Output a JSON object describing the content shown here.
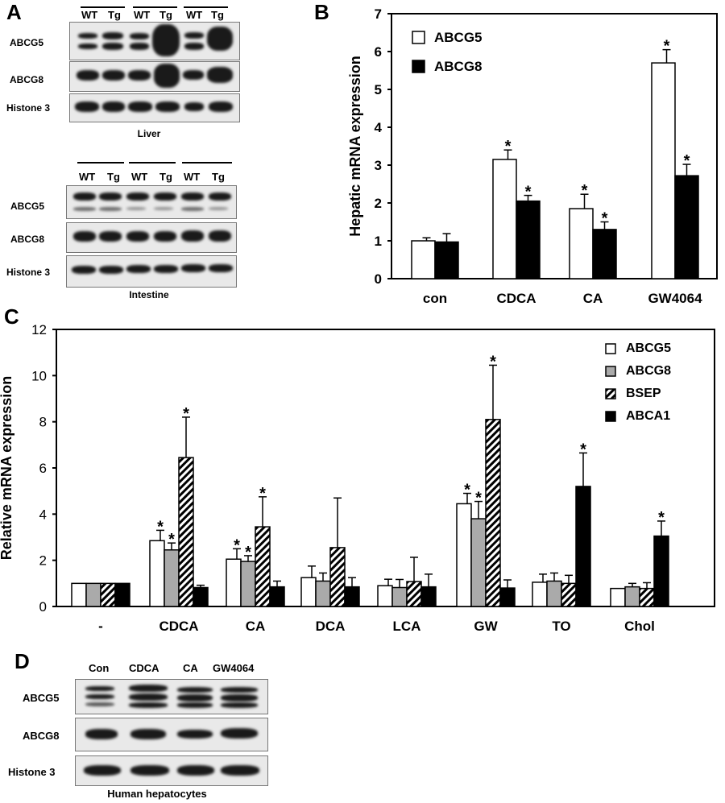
{
  "panels": {
    "A": {
      "letter": "A",
      "liver": {
        "lane_labels": [
          "WT",
          "Tg",
          "WT",
          "Tg",
          "WT",
          "Tg"
        ],
        "rows": [
          "ABCG5",
          "ABCG8",
          "Histone 3"
        ],
        "caption": "Liver"
      },
      "intestine": {
        "lane_labels": [
          "WT",
          "Tg",
          "WT",
          "Tg",
          "WT",
          "Tg"
        ],
        "rows": [
          "ABCG5",
          "ABCG8",
          "Histone 3"
        ],
        "caption": "Intestine"
      }
    },
    "B": {
      "letter": "B"
    },
    "C": {
      "letter": "C"
    },
    "D": {
      "letter": "D",
      "lane_labels": [
        "Con",
        "CDCA",
        "CA",
        "GW4064"
      ],
      "rows": [
        "ABCG5",
        "ABCG8",
        "Histone 3"
      ],
      "caption": "Human hepatocytes"
    }
  },
  "chart_data": [
    {
      "panel": "B",
      "type": "bar",
      "ylabel": "Hepatic mRNA expression",
      "ylim": [
        0,
        7
      ],
      "yticks": [
        "0",
        "1",
        "2",
        "3",
        "4",
        "5",
        "6",
        "7"
      ],
      "categories": [
        "con",
        "CDCA",
        "CA",
        "GW4064"
      ],
      "series": [
        {
          "name": "ABCG5",
          "values": [
            1.0,
            3.15,
            1.85,
            5.7
          ],
          "errors": [
            0.08,
            0.25,
            0.38,
            0.35
          ],
          "significant": [
            false,
            true,
            true,
            true
          ],
          "fill": "#ffffff"
        },
        {
          "name": "ABCG8",
          "values": [
            0.97,
            2.05,
            1.3,
            2.72
          ],
          "errors": [
            0.22,
            0.15,
            0.2,
            0.3
          ],
          "significant": [
            false,
            true,
            true,
            true
          ],
          "fill": "#000000"
        }
      ],
      "significance_marker": "*",
      "legend_position": "top-left"
    },
    {
      "panel": "C",
      "type": "bar",
      "ylabel": "Relative mRNA expression",
      "ylim": [
        0,
        12
      ],
      "yticks": [
        "0",
        "2",
        "4",
        "6",
        "8",
        "10",
        "12"
      ],
      "categories": [
        "-",
        "CDCA",
        "CA",
        "DCA",
        "LCA",
        "GW",
        "TO",
        "Chol"
      ],
      "series": [
        {
          "name": "ABCG5",
          "values": [
            1.0,
            2.85,
            2.05,
            1.25,
            0.9,
            4.45,
            1.05,
            0.78
          ],
          "errors": [
            0.0,
            0.45,
            0.45,
            0.5,
            0.28,
            0.45,
            0.35,
            0.0
          ],
          "significant": [
            false,
            true,
            true,
            false,
            false,
            true,
            false,
            false
          ],
          "fill": "#ffffff"
        },
        {
          "name": "ABCG8",
          "values": [
            1.0,
            2.45,
            1.95,
            1.1,
            0.82,
            3.8,
            1.1,
            0.85
          ],
          "errors": [
            0.0,
            0.3,
            0.25,
            0.35,
            0.35,
            0.75,
            0.35,
            0.15
          ],
          "significant": [
            false,
            true,
            true,
            false,
            false,
            true,
            false,
            false
          ],
          "fill": "#aaaaaa"
        },
        {
          "name": "BSEP",
          "values": [
            1.0,
            6.45,
            3.45,
            2.55,
            1.08,
            8.1,
            1.0,
            0.78
          ],
          "errors": [
            0.0,
            1.75,
            1.3,
            2.15,
            1.05,
            2.35,
            0.35,
            0.25
          ],
          "significant": [
            false,
            true,
            true,
            false,
            false,
            true,
            false,
            false
          ],
          "fill": "hatched"
        },
        {
          "name": "ABCA1",
          "values": [
            1.0,
            0.82,
            0.85,
            0.85,
            0.85,
            0.8,
            5.2,
            3.05
          ],
          "errors": [
            0.0,
            0.1,
            0.25,
            0.4,
            0.55,
            0.35,
            1.45,
            0.65
          ],
          "significant": [
            false,
            false,
            false,
            false,
            false,
            false,
            true,
            true
          ],
          "fill": "#000000"
        }
      ],
      "significance_marker": "*",
      "legend_position": "top-right"
    }
  ]
}
